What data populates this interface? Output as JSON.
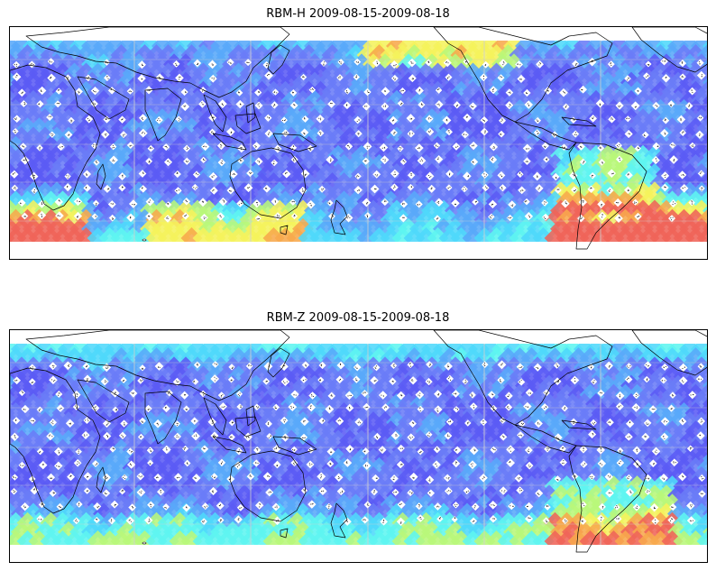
{
  "panels": [
    {
      "id": "rbm-h",
      "title": "RBM-H 2009-08-15-2009-08-18",
      "variant": "h"
    },
    {
      "id": "rbm-z",
      "title": "RBM-Z 2009-08-15-2009-08-18",
      "variant": "z"
    }
  ],
  "colormap": [
    "#5b5bf5",
    "#6a7cf7",
    "#59a9f9",
    "#4fd8fb",
    "#5ff5f0",
    "#b8f77a",
    "#f5f35c",
    "#f7a84c",
    "#ef6459"
  ],
  "colors": {
    "coastline": "#000000",
    "grid": "#cfcfcf",
    "missing_marker": "#ffffff"
  }
}
